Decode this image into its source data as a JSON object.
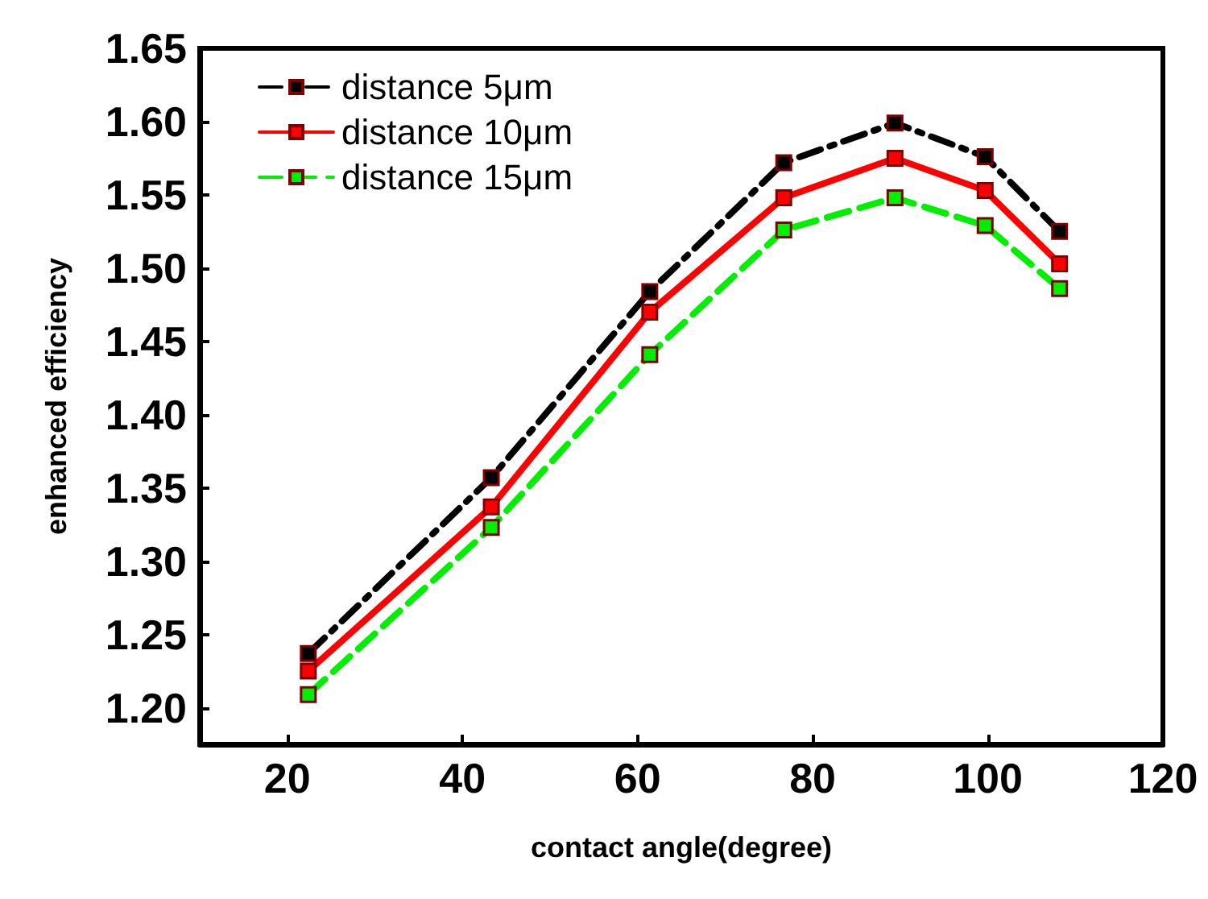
{
  "chart_data": {
    "type": "line",
    "xlabel": "contact angle(degree)",
    "ylabel": "enhanced efficiency",
    "x": [
      22.4,
      43.3,
      61.4,
      76.7,
      89.4,
      99.7,
      108.2
    ],
    "series": [
      {
        "name": "distance 5μm",
        "color": "#000000",
        "line_style": "dashdot",
        "values": [
          1.237,
          1.357,
          1.484,
          1.572,
          1.599,
          1.576,
          1.525
        ]
      },
      {
        "name": "distance 10μm",
        "color": "#ff0000",
        "line_style": "solid",
        "values": [
          1.225,
          1.337,
          1.47,
          1.548,
          1.575,
          1.553,
          1.503
        ]
      },
      {
        "name": "distance 15μm",
        "color": "#00ee00",
        "line_style": "dashed",
        "values": [
          1.209,
          1.323,
          1.441,
          1.526,
          1.548,
          1.529,
          1.486
        ]
      }
    ],
    "marker": "square",
    "xlim": [
      10,
      120
    ],
    "xticks": [
      20,
      40,
      60,
      80,
      100,
      120
    ],
    "ylim": [
      1.175,
      1.65
    ],
    "yticks": [
      {
        "value": 1.2,
        "label": "1.20"
      },
      {
        "value": 1.25,
        "label": "1.25"
      },
      {
        "value": 1.3,
        "label": "1.30"
      },
      {
        "value": 1.35,
        "label": "1.35"
      },
      {
        "value": 1.4,
        "label": "1.40"
      },
      {
        "value": 1.45,
        "label": "1.45"
      },
      {
        "value": 1.5,
        "label": "1.50"
      },
      {
        "value": 1.55,
        "label": "1.55"
      },
      {
        "value": 1.6,
        "label": "1.60"
      },
      {
        "value": 1.65,
        "label": "1.65"
      }
    ],
    "grid": false,
    "legend": "top left"
  }
}
